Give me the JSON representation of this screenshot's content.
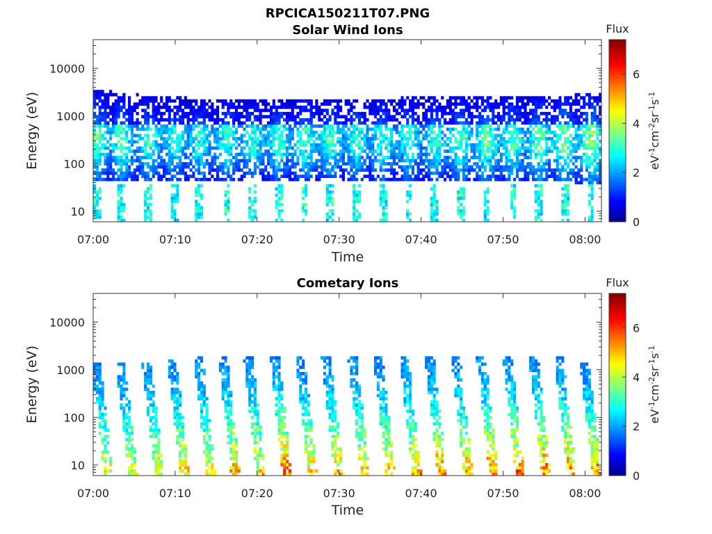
{
  "figure": {
    "filename": "RPCICA150211T07.PNG"
  },
  "chart_data": [
    {
      "type": "heatmap",
      "title": "Solar Wind Ions",
      "xlabel": "Time",
      "ylabel": "Energy (eV)",
      "xticks": [
        "07:00",
        "07:10",
        "07:20",
        "07:30",
        "07:40",
        "07:50",
        "08:00"
      ],
      "yticks": [
        "10",
        "100",
        "1000",
        "10000"
      ],
      "yscale": "log",
      "xlim_minutes_from_0700": [
        0,
        62
      ],
      "ylim": [
        6,
        40000
      ],
      "colorbar": {
        "title": "Flux",
        "label": "eV-1cm-2sr-1s-1",
        "label_base": "eV",
        "label_parts": [
          [
            "-1",
            "cm"
          ],
          [
            "-2",
            "sr"
          ],
          [
            "-1",
            "s"
          ],
          [
            "-1",
            ""
          ]
        ],
        "ticks": [
          "0",
          "2",
          "4",
          "6"
        ],
        "range": [
          0,
          7.4
        ]
      },
      "cmap": "jet",
      "bursts": [
        {
          "t": 0.5,
          "lo": 60,
          "hi": 2500,
          "peak": 3.4
        },
        {
          "t": 3.5,
          "lo": 55,
          "hi": 2200,
          "peak": 3.2
        },
        {
          "t": 6.8,
          "lo": 55,
          "hi": 2000,
          "peak": 3.1
        },
        {
          "t": 9.9,
          "lo": 60,
          "hi": 1900,
          "peak": 3.0
        },
        {
          "t": 13.0,
          "lo": 60,
          "hi": 1800,
          "peak": 3.0
        },
        {
          "t": 16.3,
          "lo": 60,
          "hi": 1800,
          "peak": 3.1
        },
        {
          "t": 19.5,
          "lo": 60,
          "hi": 1700,
          "peak": 3.0
        },
        {
          "t": 22.6,
          "lo": 60,
          "hi": 1800,
          "peak": 3.1
        },
        {
          "t": 25.8,
          "lo": 60,
          "hi": 1800,
          "peak": 3.2
        },
        {
          "t": 29.0,
          "lo": 60,
          "hi": 1700,
          "peak": 3.2
        },
        {
          "t": 32.1,
          "lo": 60,
          "hi": 1800,
          "peak": 3.0
        },
        {
          "t": 35.3,
          "lo": 60,
          "hi": 1800,
          "peak": 3.1
        },
        {
          "t": 38.5,
          "lo": 60,
          "hi": 1900,
          "peak": 3.0
        },
        {
          "t": 41.7,
          "lo": 60,
          "hi": 1900,
          "peak": 3.1
        },
        {
          "t": 44.8,
          "lo": 55,
          "hi": 2000,
          "peak": 3.2
        },
        {
          "t": 48.0,
          "lo": 55,
          "hi": 2000,
          "peak": 3.4
        },
        {
          "t": 51.2,
          "lo": 55,
          "hi": 2000,
          "peak": 3.3
        },
        {
          "t": 54.4,
          "lo": 55,
          "hi": 2000,
          "peak": 3.4
        },
        {
          "t": 57.5,
          "lo": 55,
          "hi": 2100,
          "peak": 3.5
        },
        {
          "t": 60.7,
          "lo": 50,
          "hi": 2200,
          "peak": 3.6
        }
      ]
    },
    {
      "type": "heatmap",
      "title": "Cometary Ions",
      "xlabel": "Time",
      "ylabel": "Energy (eV)",
      "xticks": [
        "07:00",
        "07:10",
        "07:20",
        "07:30",
        "07:40",
        "07:50",
        "08:00"
      ],
      "yticks": [
        "10",
        "100",
        "1000",
        "10000"
      ],
      "yscale": "log",
      "xlim_minutes_from_0700": [
        0,
        62
      ],
      "ylim": [
        6,
        40000
      ],
      "colorbar": {
        "title": "Flux",
        "label": "eV-1cm-2sr-1s-1",
        "label_base": "eV",
        "label_parts": [
          [
            "-1",
            "cm"
          ],
          [
            "-2",
            "sr"
          ],
          [
            "-1",
            "s"
          ],
          [
            "-1",
            ""
          ]
        ],
        "ticks": [
          "0",
          "2",
          "4",
          "6"
        ],
        "range": [
          0,
          7.4
        ]
      },
      "cmap": "jet",
      "bursts": [
        {
          "t": 0.3,
          "top": 1500,
          "peak": 4.6
        },
        {
          "t": 3.3,
          "top": 1500,
          "peak": 4.4
        },
        {
          "t": 6.5,
          "top": 1400,
          "peak": 4.5
        },
        {
          "t": 9.6,
          "top": 1700,
          "peak": 4.8
        },
        {
          "t": 12.8,
          "top": 2000,
          "peak": 4.6
        },
        {
          "t": 15.8,
          "top": 1900,
          "peak": 5.2
        },
        {
          "t": 18.9,
          "top": 1900,
          "peak": 4.8
        },
        {
          "t": 22.1,
          "top": 2000,
          "peak": 5.8
        },
        {
          "t": 25.2,
          "top": 1900,
          "peak": 4.9
        },
        {
          "t": 28.4,
          "top": 2000,
          "peak": 5.1
        },
        {
          "t": 31.6,
          "top": 2000,
          "peak": 4.8
        },
        {
          "t": 34.7,
          "top": 2000,
          "peak": 4.9
        },
        {
          "t": 37.9,
          "top": 2000,
          "peak": 4.9
        },
        {
          "t": 41.0,
          "top": 2000,
          "peak": 5.4
        },
        {
          "t": 44.2,
          "top": 2000,
          "peak": 5.3
        },
        {
          "t": 47.3,
          "top": 2000,
          "peak": 5.5
        },
        {
          "t": 50.5,
          "top": 2000,
          "peak": 5.6
        },
        {
          "t": 53.7,
          "top": 2000,
          "peak": 5.7
        },
        {
          "t": 56.8,
          "top": 1800,
          "peak": 5.5
        },
        {
          "t": 59.9,
          "top": 1500,
          "peak": 5.4
        }
      ]
    }
  ]
}
